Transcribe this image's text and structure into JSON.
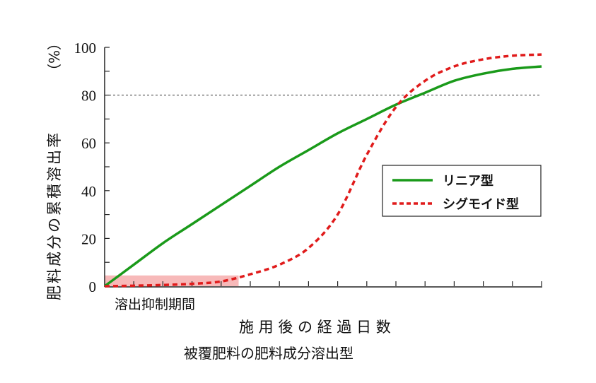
{
  "chart_data": {
    "type": "line",
    "title": "被覆肥料の肥料成分溶出型",
    "xlabel": "施 用 後 の 経 過 日 数",
    "ylabel": "肥料成分の累積溶出率",
    "ylabel_unit": "（%）",
    "ylim": [
      0,
      100
    ],
    "yticks": [
      0,
      20,
      40,
      60,
      80,
      100
    ],
    "xlim": [
      0,
      15
    ],
    "x_tick_count": 15,
    "grid": false,
    "reference_line": {
      "y": 80,
      "style": "dashed"
    },
    "shaded_region": {
      "label": "溶出抑制期間",
      "x": [
        0,
        4.6
      ],
      "y": [
        0,
        4.5
      ],
      "color": "#f7b9b9"
    },
    "legend_position": "right-middle",
    "x": [
      0,
      1,
      2,
      3,
      4,
      5,
      6,
      7,
      8,
      9,
      10,
      11,
      12,
      13,
      14,
      15
    ],
    "series": [
      {
        "name": "リニア型",
        "color": "#1a9a1a",
        "style": "solid",
        "values": [
          0,
          9,
          18,
          26,
          34,
          42,
          50,
          57,
          64,
          70,
          76,
          81,
          86,
          89,
          91,
          92
        ]
      },
      {
        "name": "シグモイド型",
        "color": "#e01b1b",
        "style": "dashed",
        "values": [
          0,
          0.2,
          0.5,
          1,
          2,
          5,
          9,
          16,
          30,
          55,
          75,
          86,
          92,
          95,
          96.5,
          97
        ]
      }
    ]
  }
}
